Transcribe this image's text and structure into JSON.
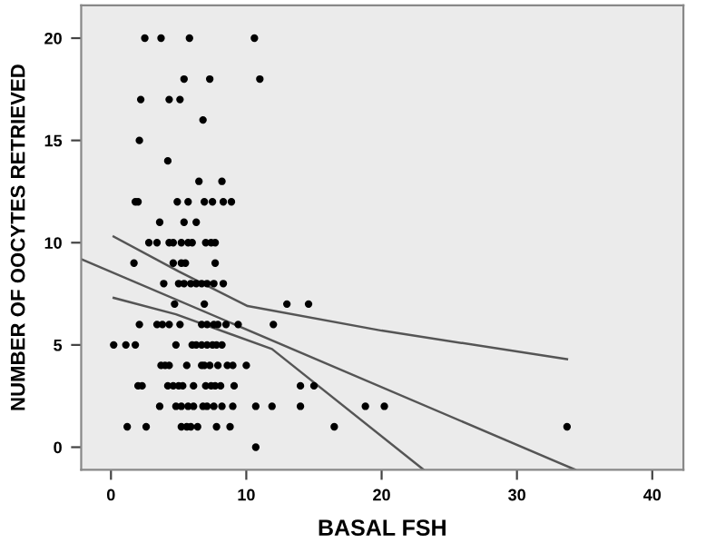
{
  "chart_data": {
    "type": "scatter",
    "xlabel": "BASAL FSH",
    "ylabel": "NUMBER OF OOCYTES RETRIEVED",
    "xlim": [
      -2.2,
      42.3
    ],
    "ylim": [
      -1.1,
      21.6
    ],
    "xticks": [
      0,
      10,
      20,
      30,
      40
    ],
    "yticks": [
      0,
      5,
      10,
      15,
      20
    ],
    "grid": false,
    "series": [
      {
        "marker": "circle",
        "color": "#000000",
        "x": [
          2.5,
          3.7,
          5.8,
          10.6,
          5.4,
          7.3,
          11.0,
          2.2,
          4.3,
          5.1,
          6.8,
          2.1,
          4.2,
          6.5,
          8.2,
          1.8,
          2.0,
          4.9,
          5.7,
          6.9,
          7.5,
          8.3,
          8.9,
          3.6,
          5.4,
          6.3,
          2.8,
          3.4,
          4.3,
          4.6,
          5.2,
          5.7,
          6.0,
          7.0,
          7.4,
          7.7,
          1.7,
          4.6,
          5.2,
          5.5,
          7.7,
          3.9,
          5.0,
          5.4,
          5.9,
          6.3,
          6.7,
          7.1,
          7.6,
          8.3,
          4.7,
          6.9,
          13.0,
          14.6,
          2.1,
          3.4,
          3.8,
          4.3,
          5.1,
          6.7,
          7.1,
          7.6,
          7.9,
          8.5,
          9.4,
          12.0,
          0.2,
          1.1,
          1.8,
          4.8,
          6.0,
          6.3,
          6.7,
          7.1,
          7.5,
          7.8,
          8.2,
          3.7,
          4.0,
          4.3,
          5.6,
          6.7,
          6.9,
          7.3,
          7.9,
          8.6,
          9.0,
          10.0,
          2.0,
          2.3,
          4.2,
          4.6,
          5.0,
          5.3,
          6.1,
          7.0,
          7.4,
          7.7,
          8.1,
          9.1,
          14.0,
          15.0,
          3.6,
          4.8,
          5.2,
          5.7,
          6.1,
          6.8,
          7.1,
          7.6,
          8.2,
          9.0,
          10.7,
          11.9,
          14.0,
          18.8,
          20.2,
          1.2,
          2.6,
          5.2,
          5.6,
          5.9,
          6.4,
          7.8,
          8.8,
          16.5,
          33.7,
          10.7
        ],
        "values": [
          20,
          20,
          20,
          20,
          18,
          18,
          18,
          17,
          17,
          17,
          16,
          15,
          14,
          13,
          13,
          12,
          12,
          12,
          12,
          12,
          12,
          12,
          12,
          11,
          11,
          11,
          10,
          10,
          10,
          10,
          10,
          10,
          10,
          10,
          10,
          10,
          9,
          9,
          9,
          9,
          9,
          8,
          8,
          8,
          8,
          8,
          8,
          8,
          8,
          8,
          7,
          7,
          7,
          7,
          6,
          6,
          6,
          6,
          6,
          6,
          6,
          6,
          6,
          6,
          6,
          6,
          5,
          5,
          5,
          5,
          5,
          5,
          5,
          5,
          5,
          5,
          5,
          4,
          4,
          4,
          4,
          4,
          4,
          4,
          4,
          4,
          4,
          4,
          3,
          3,
          3,
          3,
          3,
          3,
          3,
          3,
          3,
          3,
          3,
          3,
          3,
          3,
          2,
          2,
          2,
          2,
          2,
          2,
          2,
          2,
          2,
          2,
          2,
          2,
          2,
          2,
          2,
          1,
          1,
          1,
          1,
          1,
          1,
          1,
          1,
          1,
          1,
          0
        ]
      },
      {
        "type": "line",
        "color": "#555555",
        "x": [
          -2.2,
          34.3
        ],
        "values": [
          9.2,
          -1.1
        ]
      },
      {
        "type": "line",
        "color": "#555555",
        "x": [
          0.2,
          5,
          10.1,
          20,
          33.7
        ],
        "values": [
          10.3,
          8.6,
          6.9,
          5.7,
          4.3
        ]
      },
      {
        "type": "line",
        "color": "#555555",
        "x": [
          0.2,
          4.8,
          11.9,
          23.1
        ],
        "values": [
          7.3,
          6.5,
          4.8,
          -1.1
        ]
      }
    ]
  }
}
